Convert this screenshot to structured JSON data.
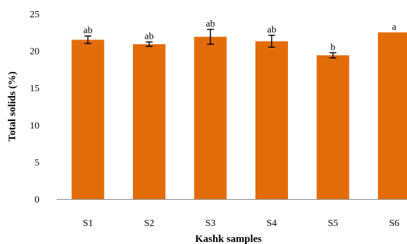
{
  "chart_data": {
    "type": "bar",
    "title": "",
    "xlabel": "Kashk samples",
    "ylabel": "Total solids (%)",
    "ylim": [
      0,
      25
    ],
    "yticks": [
      0,
      5,
      10,
      15,
      20,
      25
    ],
    "grid": false,
    "bar_color": "#E36C0A",
    "categories": [
      "S1",
      "S2",
      "S3",
      "S4",
      "S5",
      "S6"
    ],
    "values": [
      21.5,
      20.9,
      21.9,
      21.3,
      19.4,
      22.5
    ],
    "errors": [
      0.5,
      0.3,
      1.0,
      0.8,
      0.35,
      null
    ],
    "significance_letters": [
      "ab",
      "ab",
      "ab",
      "ab",
      "b",
      "a"
    ]
  }
}
